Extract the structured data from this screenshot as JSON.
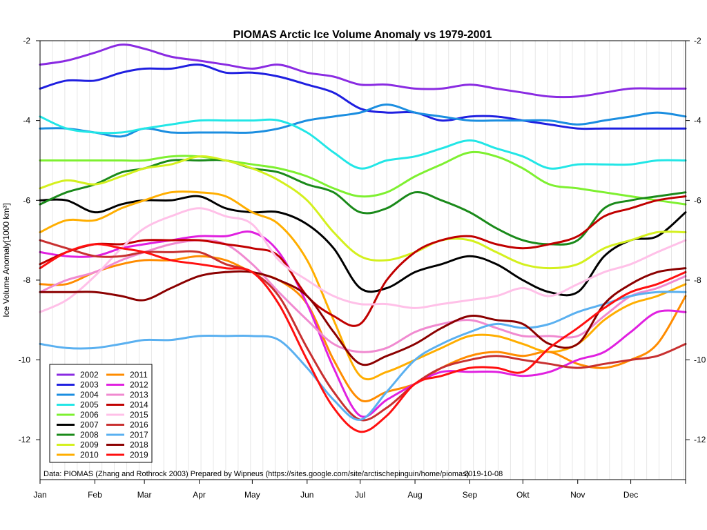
{
  "chart_data": {
    "type": "line",
    "title": "PIOMAS Arctic Ice Volume Anomaly vs 1979-2001",
    "ylabel": "Ice Volume Anomaly[1000 km³]",
    "xlabel": "",
    "caption": "Data: PIOMAS (Zhang and Rothrock 2003) Prepared by Wipneus (https://sites.google.com/site/arctischepinguin/home/piomas)",
    "date": "2019-10-08",
    "ylim": [
      -13,
      -2
    ],
    "xlim": [
      0,
      365
    ],
    "months": [
      "Jan",
      "Feb",
      "Mar",
      "Apr",
      "May",
      "Jun",
      "Jul",
      "Aug",
      "Sep",
      "Okt",
      "Nov",
      "Dec"
    ],
    "month_days": [
      0,
      31,
      59,
      90,
      120,
      151,
      181,
      212,
      243,
      273,
      304,
      334
    ],
    "yticks": [
      -2,
      -4,
      -6,
      -8,
      -10,
      -12
    ],
    "ytick_labels": [
      "-2",
      "-4",
      "-6",
      "-8",
      "-10",
      "-12"
    ],
    "x": [
      0,
      15,
      31,
      46,
      59,
      74,
      90,
      105,
      120,
      135,
      151,
      166,
      181,
      196,
      212,
      227,
      243,
      258,
      273,
      288,
      304,
      319,
      334,
      349,
      365
    ],
    "series": [
      {
        "name": "2002",
        "color": "#8a2be2",
        "values": [
          -2.6,
          -2.5,
          -2.3,
          -2.1,
          -2.2,
          -2.4,
          -2.5,
          -2.6,
          -2.7,
          -2.6,
          -2.8,
          -2.9,
          -3.1,
          -3.1,
          -3.2,
          -3.2,
          -3.1,
          -3.2,
          -3.3,
          -3.4,
          -3.4,
          -3.3,
          -3.2,
          -3.2,
          -3.2
        ]
      },
      {
        "name": "2003",
        "color": "#1f1fe0",
        "values": [
          -3.2,
          -3.0,
          -3.0,
          -2.8,
          -2.7,
          -2.7,
          -2.6,
          -2.8,
          -2.8,
          -2.9,
          -3.1,
          -3.3,
          -3.7,
          -3.8,
          -3.8,
          -4.0,
          -3.9,
          -3.9,
          -4.0,
          -4.1,
          -4.2,
          -4.2,
          -4.2,
          -4.2,
          -4.2
        ]
      },
      {
        "name": "2004",
        "color": "#1b8ee0",
        "values": [
          -4.2,
          -4.2,
          -4.3,
          -4.4,
          -4.2,
          -4.3,
          -4.3,
          -4.3,
          -4.3,
          -4.2,
          -4.0,
          -3.9,
          -3.8,
          -3.6,
          -3.8,
          -3.9,
          -4.0,
          -4.0,
          -4.0,
          -4.0,
          -4.1,
          -4.0,
          -3.9,
          -3.8,
          -3.9
        ]
      },
      {
        "name": "2005",
        "color": "#22e6e6",
        "values": [
          -3.9,
          -4.2,
          -4.3,
          -4.3,
          -4.2,
          -4.1,
          -4.0,
          -4.0,
          -4.0,
          -4.0,
          -4.3,
          -4.8,
          -5.2,
          -5.0,
          -4.9,
          -4.7,
          -4.5,
          -4.7,
          -4.9,
          -5.2,
          -5.1,
          -5.1,
          -5.1,
          -5.0,
          -5.0
        ]
      },
      {
        "name": "2006",
        "color": "#7ef030",
        "values": [
          -5.0,
          -5.0,
          -5.0,
          -5.0,
          -5.0,
          -4.9,
          -4.9,
          -5.0,
          -5.1,
          -5.2,
          -5.4,
          -5.7,
          -5.9,
          -5.8,
          -5.4,
          -5.1,
          -4.8,
          -4.9,
          -5.2,
          -5.6,
          -5.7,
          -5.8,
          -5.9,
          -6.0,
          -6.1
        ]
      },
      {
        "name": "2007",
        "color": "#000000",
        "values": [
          -6.0,
          -6.0,
          -6.3,
          -6.1,
          -6.0,
          -6.0,
          -5.9,
          -6.2,
          -6.3,
          -6.3,
          -6.6,
          -7.2,
          -8.2,
          -8.2,
          -7.8,
          -7.6,
          -7.4,
          -7.6,
          -8.0,
          -8.3,
          -8.3,
          -7.4,
          -7.0,
          -6.9,
          -6.3
        ]
      },
      {
        "name": "2008",
        "color": "#1a8a1a",
        "values": [
          -6.1,
          -5.8,
          -5.6,
          -5.3,
          -5.2,
          -5.0,
          -5.0,
          -5.0,
          -5.2,
          -5.3,
          -5.6,
          -5.8,
          -6.3,
          -6.2,
          -5.8,
          -6.0,
          -6.3,
          -6.7,
          -7.0,
          -7.1,
          -7.0,
          -6.2,
          -6.0,
          -5.9,
          -5.8
        ]
      },
      {
        "name": "2009",
        "color": "#d4f01e",
        "values": [
          -5.7,
          -5.5,
          -5.6,
          -5.4,
          -5.2,
          -5.1,
          -4.9,
          -5.0,
          -5.2,
          -5.5,
          -6.0,
          -6.8,
          -7.4,
          -7.5,
          -7.3,
          -7.0,
          -7.0,
          -7.3,
          -7.6,
          -7.7,
          -7.6,
          -7.2,
          -7.0,
          -6.8,
          -6.8
        ]
      },
      {
        "name": "2010",
        "color": "#ffae00",
        "values": [
          -6.8,
          -6.5,
          -6.5,
          -6.2,
          -6.0,
          -5.8,
          -5.8,
          -5.9,
          -6.3,
          -6.6,
          -7.5,
          -9.0,
          -10.4,
          -10.3,
          -10.0,
          -9.7,
          -9.4,
          -9.4,
          -9.6,
          -9.8,
          -9.6,
          -9.0,
          -8.6,
          -8.4,
          -8.1
        ]
      },
      {
        "name": "2011",
        "color": "#ff8c00",
        "values": [
          -8.1,
          -8.1,
          -7.8,
          -7.6,
          -7.5,
          -7.5,
          -7.4,
          -7.5,
          -7.8,
          -8.0,
          -8.6,
          -10.0,
          -11.0,
          -10.8,
          -10.6,
          -10.2,
          -9.9,
          -9.8,
          -9.9,
          -9.8,
          -10.1,
          -10.2,
          -10.0,
          -9.6,
          -8.4
        ]
      },
      {
        "name": "2012",
        "color": "#e020e0",
        "values": [
          -7.3,
          -7.4,
          -7.4,
          -7.2,
          -7.1,
          -7.0,
          -6.9,
          -6.9,
          -6.8,
          -7.3,
          -8.6,
          -10.2,
          -11.4,
          -11.0,
          -10.6,
          -10.3,
          -10.3,
          -10.3,
          -10.4,
          -10.3,
          -10.0,
          -9.8,
          -9.3,
          -8.8,
          -8.8
        ]
      },
      {
        "name": "2013",
        "color": "#f08ad0",
        "values": [
          -8.3,
          -8.0,
          -7.8,
          -7.5,
          -7.3,
          -7.1,
          -7.0,
          -7.1,
          -7.6,
          -8.3,
          -9.0,
          -9.6,
          -9.8,
          -9.7,
          -9.3,
          -9.1,
          -9.0,
          -9.2,
          -9.4,
          -9.4,
          -9.4,
          -8.9,
          -8.4,
          -8.2,
          -7.9
        ]
      },
      {
        "name": "2014",
        "color": "#c00000",
        "values": [
          -7.6,
          -7.3,
          -7.1,
          -7.1,
          -7.0,
          -7.0,
          -7.0,
          -7.1,
          -7.2,
          -7.4,
          -8.4,
          -8.9,
          -9.1,
          -8.0,
          -7.3,
          -7.0,
          -6.9,
          -7.1,
          -7.2,
          -7.1,
          -6.9,
          -6.4,
          -6.2,
          -6.0,
          -5.9
        ]
      },
      {
        "name": "2015",
        "color": "#ffc0e8",
        "values": [
          -8.8,
          -8.5,
          -7.9,
          -7.2,
          -6.7,
          -6.4,
          -6.2,
          -6.4,
          -6.6,
          -7.5,
          -8.0,
          -8.4,
          -8.6,
          -8.6,
          -8.7,
          -8.6,
          -8.5,
          -8.4,
          -8.2,
          -8.4,
          -8.1,
          -7.8,
          -7.6,
          -7.3,
          -7.0
        ]
      },
      {
        "name": "2016",
        "color": "#c83030",
        "values": [
          -7.0,
          -7.2,
          -7.4,
          -7.4,
          -7.3,
          -7.3,
          -7.3,
          -7.6,
          -7.8,
          -8.4,
          -9.7,
          -10.8,
          -11.5,
          -11.2,
          -10.6,
          -10.2,
          -10.0,
          -9.9,
          -10.0,
          -10.1,
          -10.2,
          -10.1,
          -10.0,
          -9.9,
          -9.6
        ]
      },
      {
        "name": "2017",
        "color": "#5ab0f0",
        "values": [
          -9.6,
          -9.7,
          -9.7,
          -9.6,
          -9.5,
          -9.5,
          -9.4,
          -9.4,
          -9.4,
          -9.5,
          -10.2,
          -11.0,
          -11.5,
          -10.8,
          -10.0,
          -9.6,
          -9.3,
          -9.1,
          -9.2,
          -9.1,
          -8.8,
          -8.6,
          -8.4,
          -8.3,
          -8.3
        ]
      },
      {
        "name": "2018",
        "color": "#8b0000",
        "values": [
          -8.3,
          -8.3,
          -8.3,
          -8.4,
          -8.5,
          -8.2,
          -7.9,
          -7.8,
          -7.8,
          -8.0,
          -8.4,
          -9.3,
          -10.1,
          -9.9,
          -9.6,
          -9.2,
          -8.9,
          -9.0,
          -9.1,
          -9.6,
          -9.6,
          -8.6,
          -8.1,
          -7.8,
          -7.7
        ]
      },
      {
        "name": "2019",
        "color": "#ff1010",
        "values": [
          -7.7,
          -7.3,
          -7.1,
          -7.2,
          -7.3,
          -7.5,
          -7.6,
          -7.7,
          -7.8,
          -8.6,
          -10.0,
          -11.2,
          -11.8,
          -11.4,
          -10.6,
          -10.4,
          -10.2,
          -10.2,
          -10.3,
          -9.7,
          -9.2,
          -8.7,
          -8.3,
          -8.1,
          -7.8
        ]
      }
    ]
  }
}
